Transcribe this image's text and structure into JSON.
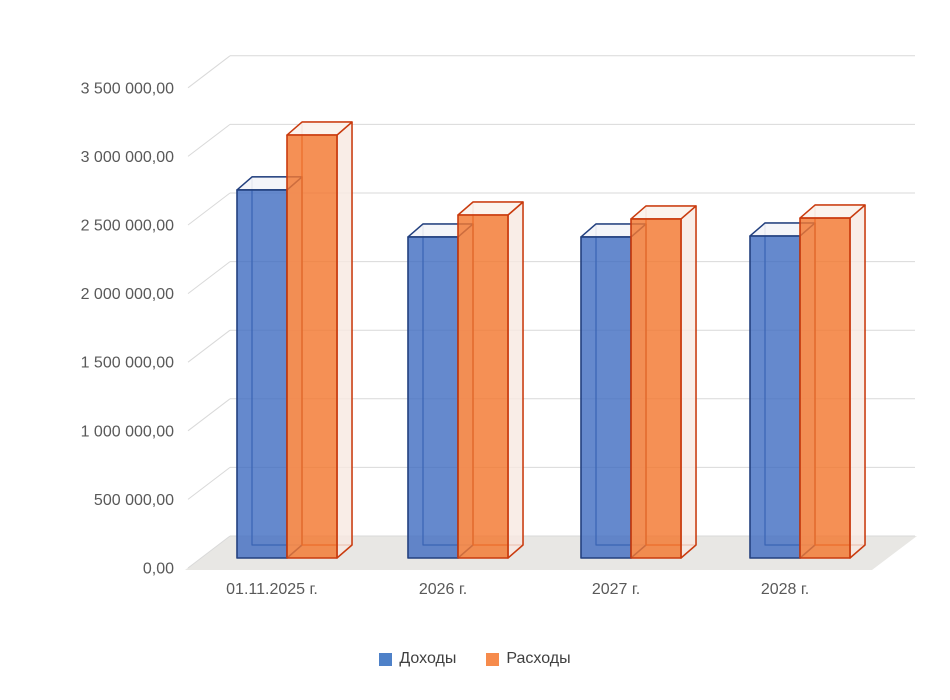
{
  "chart_data": {
    "type": "bar",
    "projection": "3d-clustered-column",
    "title": "",
    "categories": [
      "01.11.2025 г.",
      "2026 г.",
      "2027 г.",
      "2028 г."
    ],
    "series": [
      {
        "name": "Доходы",
        "values": [
          2683000,
          2340000,
          2340000,
          2347000
        ],
        "color": "#4E81C8",
        "front_fill": "#3E6BC0",
        "front_opacity": 0.8,
        "side_fill": "#E9EDF5",
        "top_fill": "#F3F4F8",
        "border": "#23407F"
      },
      {
        "name": "Расходы",
        "values": [
          3083000,
          2500000,
          2471000,
          2478000
        ],
        "color": "#F68B4C",
        "front_fill": "#F3782F",
        "front_opacity": 0.82,
        "side_fill": "#F7E9E1",
        "top_fill": "#FBF2EC",
        "border": "#C93B0E"
      }
    ],
    "ylim": [
      0,
      3500000
    ],
    "ytick_step": 500000,
    "ytick_labels": [
      "0,00",
      "500 000,00",
      "1 000 000,00",
      "1 500 000,00",
      "2 000 000,00",
      "2 500 000,00",
      "3 000 000,00",
      "3 500 000,00"
    ],
    "grid": true,
    "gridline_color": "#D9D9D9",
    "floor_color": "#E8E7E4",
    "axis_text_color": "#595959",
    "legend_text_color": "#404040",
    "legend_position": "bottom"
  }
}
